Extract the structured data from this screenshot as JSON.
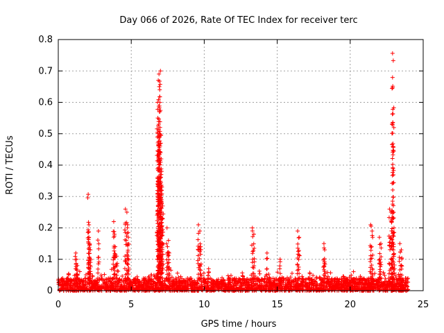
{
  "chart_data": {
    "type": "scatter",
    "title": "Day 066 of 2026, Rate Of TEC Index for receiver terc",
    "xlabel": "GPS time / hours",
    "ylabel": "ROTI / TECUs",
    "xlim": [
      0,
      25
    ],
    "ylim": [
      0,
      0.8
    ],
    "xticks": [
      0,
      5,
      10,
      15,
      20,
      25
    ],
    "yticks": [
      0,
      0.1,
      0.2,
      0.3,
      0.4,
      0.5,
      0.6,
      0.7,
      0.8
    ],
    "xtick_labels": [
      "0",
      "5",
      "10",
      "15",
      "20",
      "25"
    ],
    "ytick_labels": [
      "0",
      "0.1",
      "0.2",
      "0.3",
      "0.4",
      "0.5",
      "0.6",
      "0.7",
      "0.8"
    ],
    "grid": true,
    "marker": "+",
    "color": "#ff0000",
    "x_extent": [
      0,
      24
    ],
    "baseline_band": [
      0.0,
      0.04
    ],
    "series": [
      {
        "name": "ROTI",
        "x": [
          1.2,
          1.25,
          1.3,
          2.05,
          2.1,
          2.1,
          2.15,
          2.2,
          2.75,
          3.8,
          3.85,
          3.9,
          4.0,
          4.6,
          4.7,
          4.75,
          4.8,
          6.75,
          6.8,
          6.82,
          6.85,
          6.88,
          6.9,
          6.92,
          6.95,
          6.97,
          7.0,
          7.02,
          7.05,
          7.08,
          7.1,
          7.15,
          7.45,
          7.55,
          7.6,
          9.6,
          9.7,
          9.75,
          10.3,
          13.3,
          13.4,
          14.3,
          15.2,
          16.4,
          16.5,
          18.2,
          18.25,
          21.4,
          21.5,
          22.0,
          22.1,
          22.7,
          22.8,
          22.85,
          22.9,
          22.95,
          23.0,
          23.4,
          23.5
        ],
        "y": [
          0.12,
          0.1,
          0.08,
          0.307,
          0.21,
          0.17,
          0.15,
          0.13,
          0.19,
          0.22,
          0.18,
          0.14,
          0.11,
          0.26,
          0.25,
          0.21,
          0.17,
          0.05,
          0.6,
          0.55,
          0.67,
          0.53,
          0.69,
          0.65,
          0.64,
          0.52,
          0.7,
          0.47,
          0.42,
          0.38,
          0.33,
          0.27,
          0.2,
          0.16,
          0.12,
          0.21,
          0.19,
          0.14,
          0.07,
          0.2,
          0.18,
          0.12,
          0.1,
          0.19,
          0.17,
          0.15,
          0.13,
          0.21,
          0.19,
          0.17,
          0.15,
          0.26,
          0.25,
          0.22,
          0.756,
          0.733,
          0.2,
          0.15,
          0.13
        ]
      }
    ]
  }
}
